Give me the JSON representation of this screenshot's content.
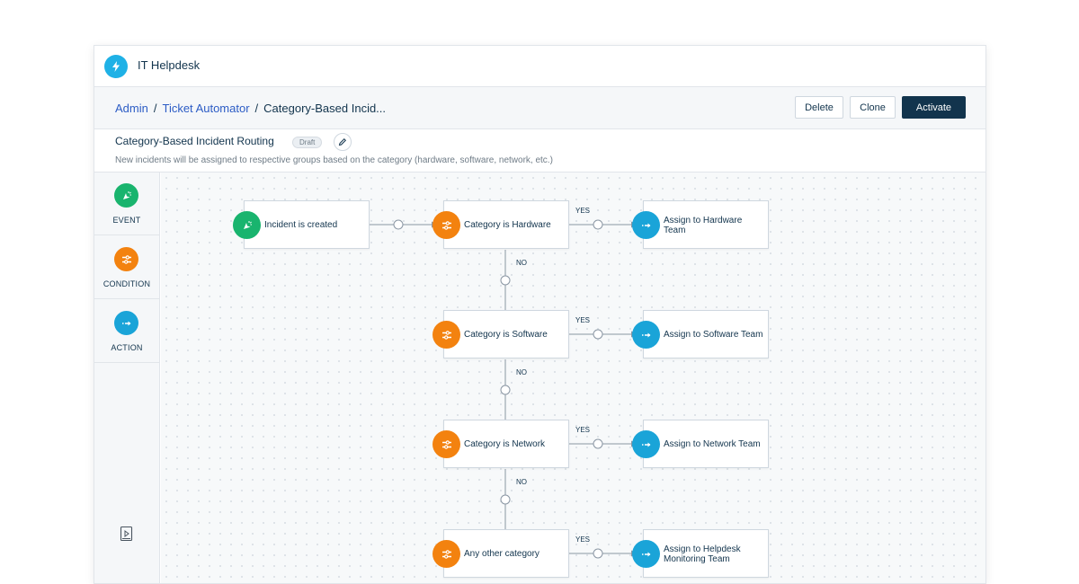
{
  "app": {
    "title": "IT Helpdesk"
  },
  "breadcrumb": {
    "items": [
      "Admin",
      "Ticket Automator"
    ],
    "current": "Category-Based Incid..."
  },
  "actions": {
    "delete_label": "Delete",
    "clone_label": "Clone",
    "activate_label": "Activate"
  },
  "flow": {
    "name": "Category-Based Incident Routing",
    "status": "Draft",
    "description": "New incidents will be assigned to respective groups based on the category (hardware, software, network, etc.)"
  },
  "palette": {
    "items": [
      "EVENT",
      "CONDITION",
      "ACTION"
    ]
  },
  "nodes": {
    "event": "Incident is created",
    "conditions": [
      "Category is Hardware",
      "Category is Software",
      "Category is Network",
      "Any other category"
    ],
    "actions": [
      "Assign to Hardware Team",
      "Assign to Software Team",
      "Assign to Network Team",
      "Assign to Helpdesk Monitoring Team"
    ]
  },
  "edges": {
    "yes": "YES",
    "no": "NO"
  },
  "colors": {
    "event": "#19b46e",
    "condition": "#f3820f",
    "action": "#1aa4d8",
    "primary": "#12344d",
    "link": "#2c5cc5"
  },
  "icons": {
    "logo": "lightning-icon",
    "event": "cursor-click-icon",
    "condition": "filter-sliders-icon",
    "action": "arrow-right-icon",
    "edit": "pencil-icon",
    "tutorial": "play-video-icon"
  }
}
